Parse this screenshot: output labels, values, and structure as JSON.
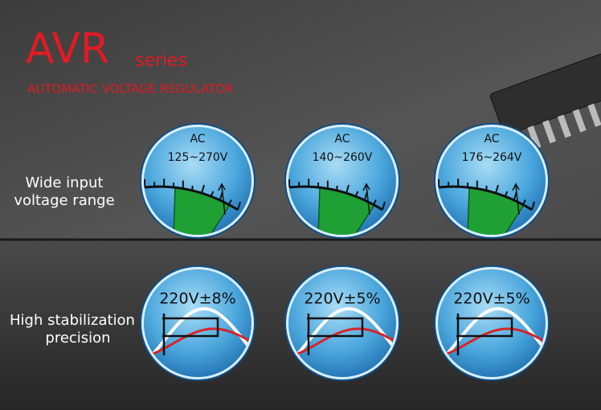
{
  "header": {
    "title": "AVR",
    "series": "series",
    "subtitle": "AUTOMATIC VOLTAGE REGULATOR"
  },
  "rows": [
    {
      "label": [
        "Wide input",
        "voltage range"
      ],
      "items": [
        {
          "line1": "AC",
          "line2": "125~270V"
        },
        {
          "line1": "AC",
          "line2": "140~260V"
        },
        {
          "line1": "AC",
          "line2": "176~264V"
        }
      ]
    },
    {
      "label": [
        "High stabilization",
        "precision"
      ],
      "items": [
        "220V±8%",
        "220V±5%",
        "220V±5%"
      ]
    }
  ]
}
